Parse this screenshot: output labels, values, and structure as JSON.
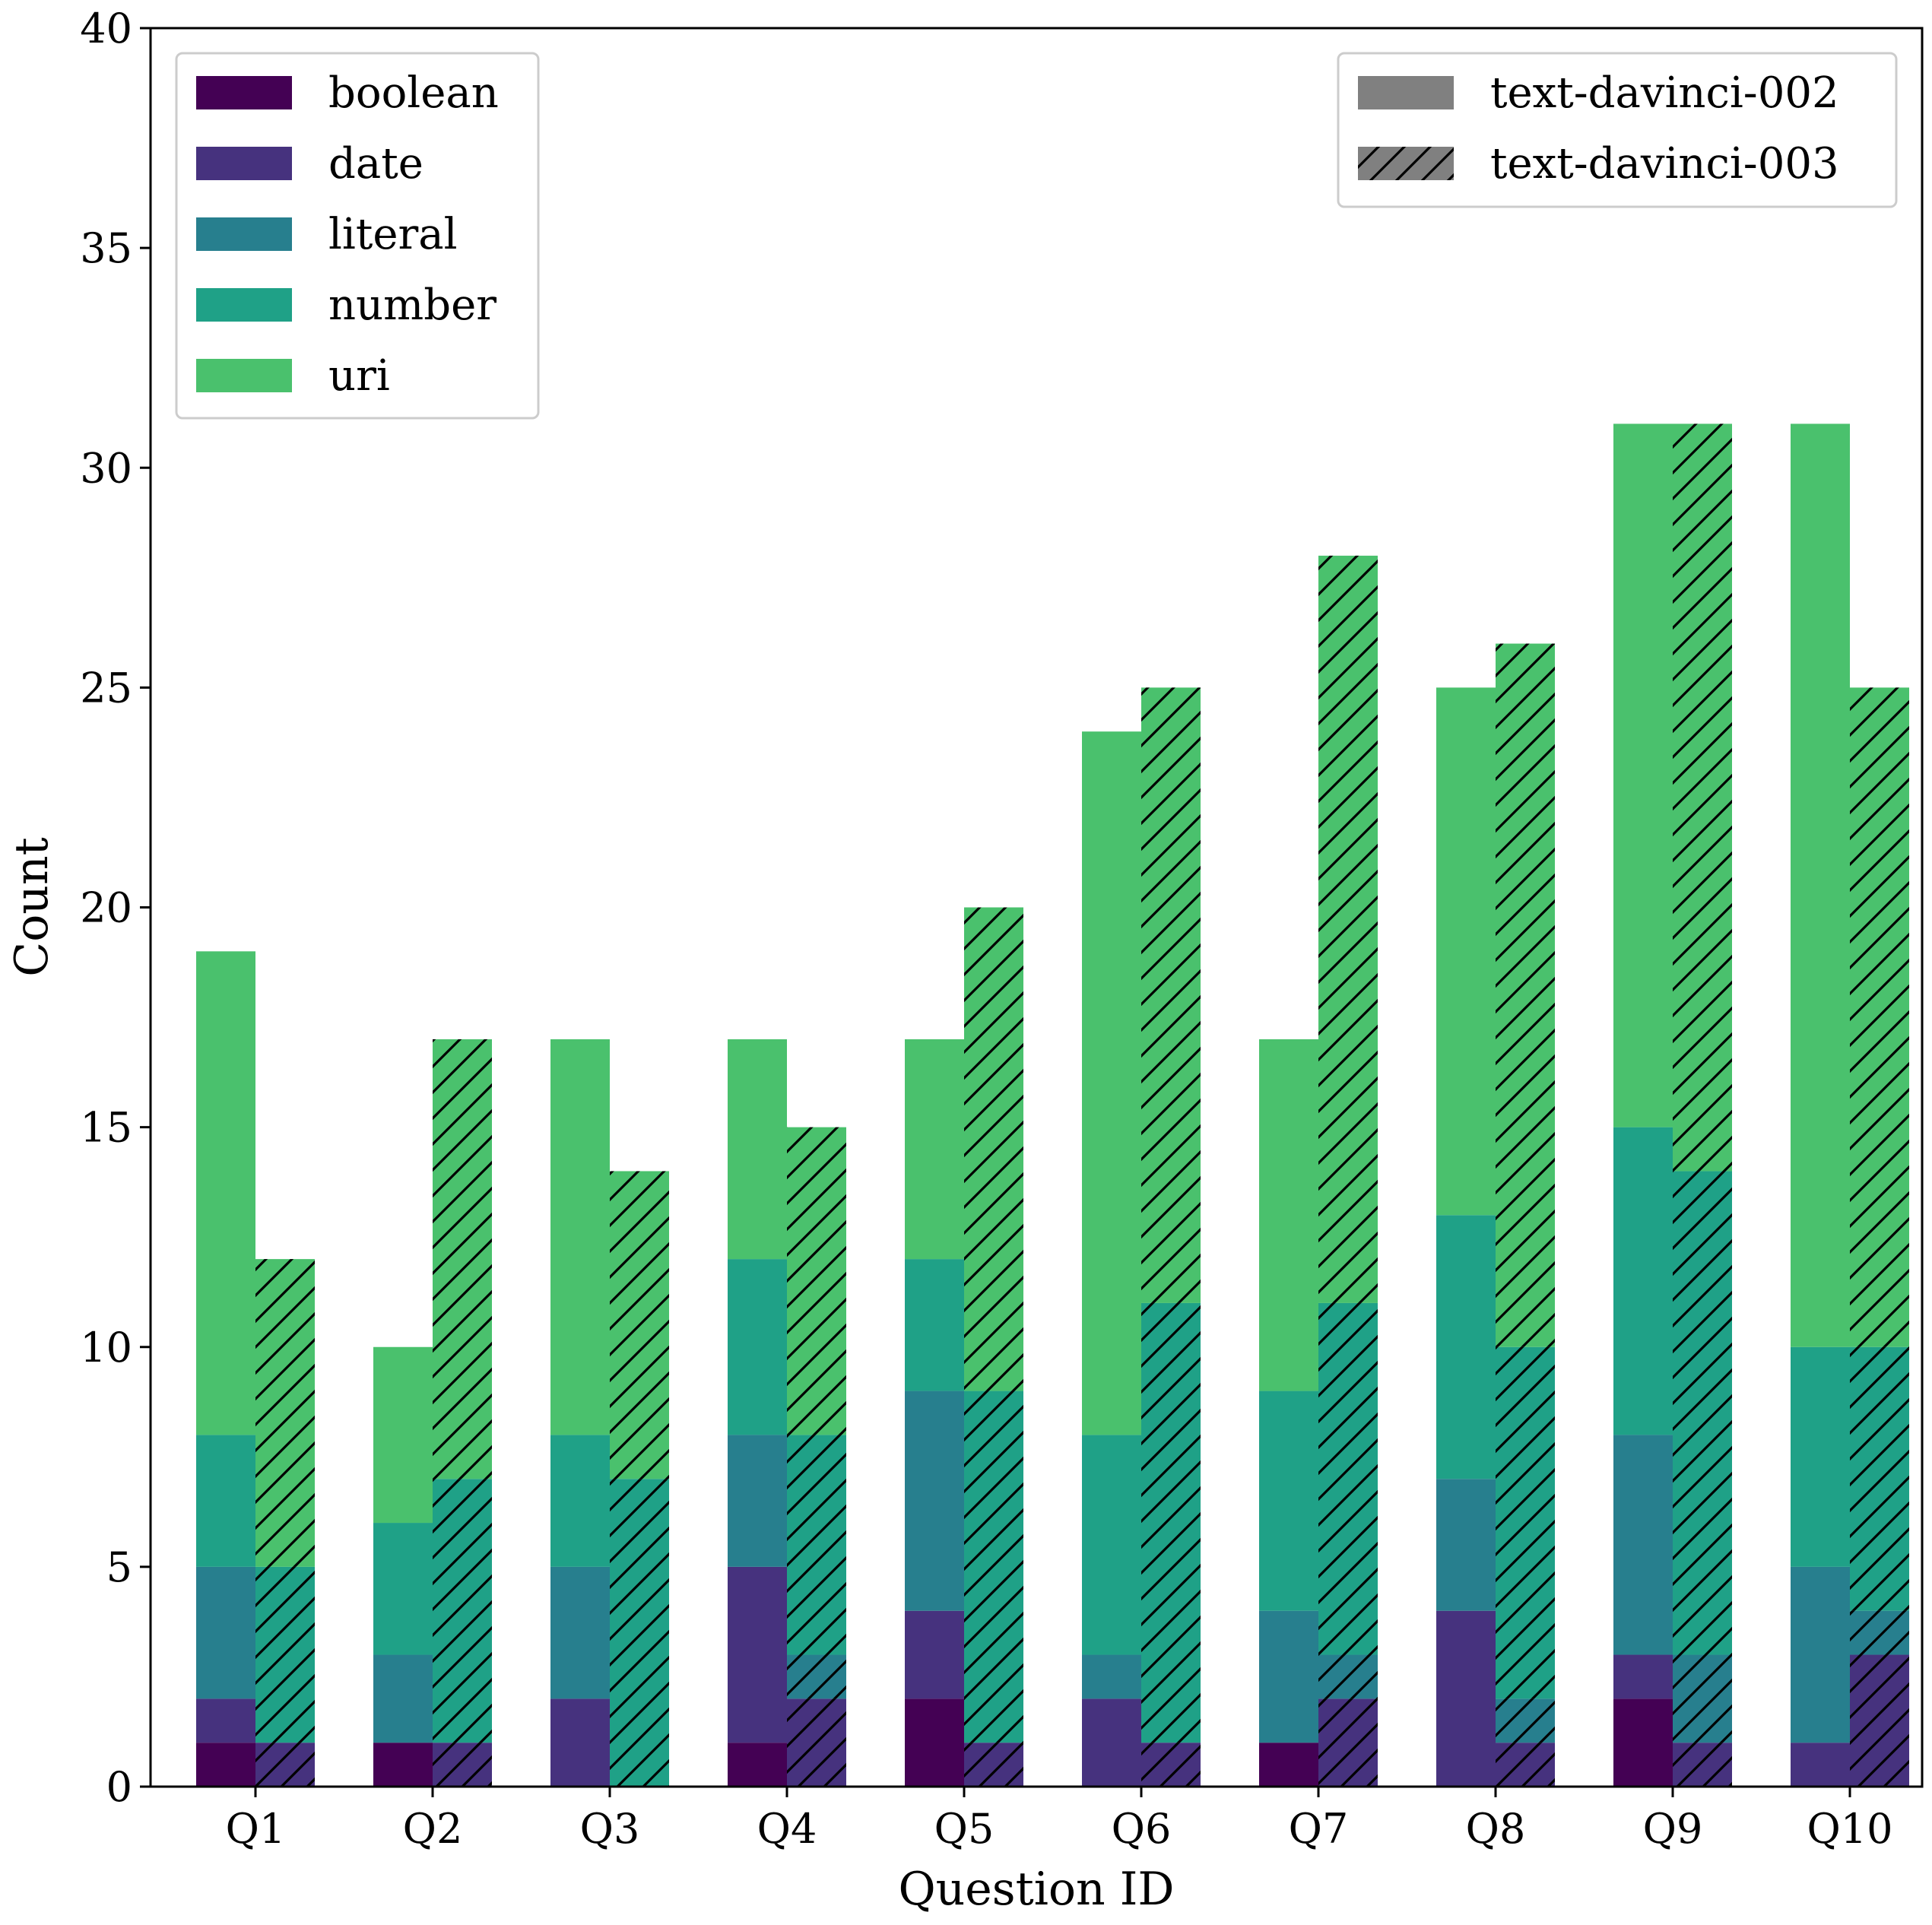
{
  "chart_data": {
    "type": "bar",
    "stacked": true,
    "categories": [
      "Q1",
      "Q2",
      "Q3",
      "Q4",
      "Q5",
      "Q6",
      "Q7",
      "Q8",
      "Q9",
      "Q10"
    ],
    "xlabel": "Question ID",
    "ylabel": "Count",
    "ylim": [
      0,
      40
    ],
    "yticks": [
      0,
      5,
      10,
      15,
      20,
      25,
      30,
      35,
      40
    ],
    "grid": false,
    "type_legend": {
      "placement": "top-left"
    },
    "model_legend": {
      "placement": "top-right"
    },
    "answer_types": [
      {
        "name": "boolean",
        "color": "#440154"
      },
      {
        "name": "date",
        "color": "#46327e"
      },
      {
        "name": "literal",
        "color": "#277f8e"
      },
      {
        "name": "number",
        "color": "#1fa187"
      },
      {
        "name": "uri",
        "color": "#4ac16d"
      }
    ],
    "models": [
      {
        "name": "text-davinci-002",
        "hatch": false,
        "swatch_color": "#808080"
      },
      {
        "name": "text-davinci-003",
        "hatch": true,
        "swatch_color": "#808080"
      }
    ],
    "series": [
      {
        "model": "text-davinci-002",
        "values": {
          "boolean": [
            1,
            1,
            0,
            1,
            2,
            0,
            1,
            0,
            2,
            0
          ],
          "date": [
            1,
            0,
            2,
            4,
            2,
            2,
            0,
            4,
            1,
            1
          ],
          "literal": [
            3,
            2,
            3,
            3,
            5,
            1,
            3,
            3,
            5,
            4
          ],
          "number": [
            3,
            3,
            3,
            4,
            3,
            5,
            5,
            6,
            7,
            5
          ],
          "uri": [
            11,
            4,
            9,
            5,
            5,
            16,
            8,
            12,
            16,
            21
          ]
        }
      },
      {
        "model": "text-davinci-003",
        "values": {
          "boolean": [
            0,
            0,
            0,
            0,
            0,
            0,
            0,
            0,
            0,
            0
          ],
          "date": [
            1,
            1,
            0,
            2,
            1,
            1,
            2,
            1,
            1,
            3
          ],
          "literal": [
            0,
            0,
            0,
            1,
            0,
            0,
            1,
            1,
            2,
            1
          ],
          "number": [
            4,
            6,
            7,
            5,
            8,
            10,
            8,
            8,
            11,
            6
          ],
          "uri": [
            7,
            10,
            7,
            7,
            11,
            14,
            17,
            16,
            17,
            15
          ]
        }
      }
    ]
  }
}
